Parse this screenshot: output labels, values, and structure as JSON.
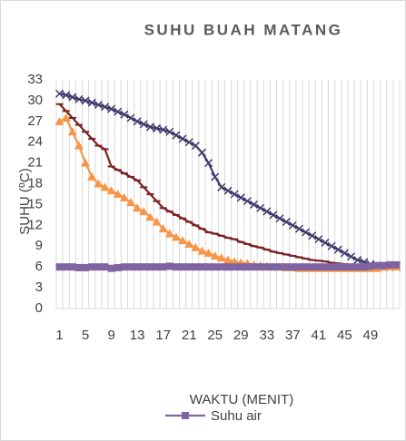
{
  "chart_data": {
    "type": "line",
    "title": "SUHU BUAH MATANG",
    "y_label": "SUHU (⁰C)",
    "x_label": "WAKTU (MENIT)",
    "categories": [
      1,
      null,
      null,
      null,
      5,
      null,
      null,
      null,
      9,
      null,
      null,
      null,
      13,
      null,
      null,
      null,
      17,
      null,
      null,
      null,
      21,
      null,
      null,
      null,
      25,
      null,
      null,
      null,
      29,
      null,
      null,
      null,
      33,
      null,
      null,
      null,
      37,
      null,
      null,
      null,
      41,
      null,
      null,
      null,
      45,
      null,
      null,
      null,
      49,
      null,
      null,
      null,
      null
    ],
    "series": [
      {
        "color": "#3f3a6b",
        "marker": "x",
        "values": [
          31,
          30.8,
          30.5,
          30.2,
          30,
          29.7,
          29.4,
          29.1,
          28.8,
          28.4,
          28,
          27.5,
          27,
          26.6,
          26.2,
          26,
          25.8,
          25.5,
          25,
          24.5,
          24,
          23.5,
          22.5,
          21,
          19,
          17.5,
          17,
          16.5,
          16,
          15.5,
          15,
          14.5,
          14,
          13.5,
          13,
          12.5,
          12,
          11.5,
          11,
          10.5,
          10,
          9.5,
          9,
          8.5,
          8,
          7.5,
          7,
          6.7,
          6.4,
          6.2,
          6,
          6,
          6
        ]
      },
      {
        "color": "#7a2323",
        "marker": "dash",
        "values": [
          29.5,
          28.5,
          27.5,
          26.5,
          25.5,
          24.5,
          23.5,
          23,
          20.5,
          20,
          19.5,
          19,
          18.5,
          17.5,
          16.5,
          15.5,
          14.5,
          14,
          13.5,
          13,
          12.5,
          12,
          11.5,
          11,
          10.8,
          10.5,
          10.2,
          10,
          9.6,
          9.3,
          9,
          8.8,
          8.5,
          8.2,
          8,
          7.8,
          7.6,
          7.4,
          7.2,
          7,
          6.9,
          6.8,
          6.6,
          6.5,
          6.4,
          6.3,
          6.2,
          6.1,
          6,
          6,
          6,
          6,
          6
        ]
      },
      {
        "color": "#f79646",
        "marker": "triangle",
        "values": [
          27,
          27.5,
          25.5,
          23.5,
          21,
          19,
          18,
          17.5,
          17,
          16.5,
          16,
          15.3,
          14.5,
          14,
          13.2,
          12.5,
          11.5,
          10.8,
          10.3,
          9.8,
          9.3,
          8.8,
          8.3,
          8,
          7.6,
          7.3,
          7,
          6.8,
          6.6,
          6.5,
          6.3,
          6.2,
          6.1,
          6,
          6,
          5.9,
          5.9,
          5.8,
          5.8,
          5.8,
          5.8,
          5.8,
          5.8,
          5.8,
          5.8,
          5.8,
          5.8,
          5.8,
          5.8,
          5.8,
          6,
          6,
          6
        ]
      },
      {
        "name": "Suhu air",
        "color": "#8064a2",
        "marker": "square",
        "values": [
          6,
          6,
          6,
          5.9,
          5.9,
          6,
          6,
          6,
          5.8,
          5.9,
          6,
          6,
          6,
          6,
          6,
          6,
          6,
          6.1,
          6,
          6,
          6,
          6,
          6,
          6,
          6,
          6,
          6,
          6,
          6,
          6,
          6,
          6,
          6,
          6,
          6,
          6,
          6,
          6,
          6,
          6,
          6,
          6,
          6,
          6,
          6,
          6,
          6,
          6,
          6.1,
          6.2,
          6.2,
          6.3,
          6.3
        ]
      }
    ],
    "ylim": [
      0,
      33
    ],
    "yticks": [
      0,
      3,
      6,
      9,
      12,
      15,
      18,
      21,
      24,
      27,
      30,
      33
    ],
    "grid": "x"
  }
}
